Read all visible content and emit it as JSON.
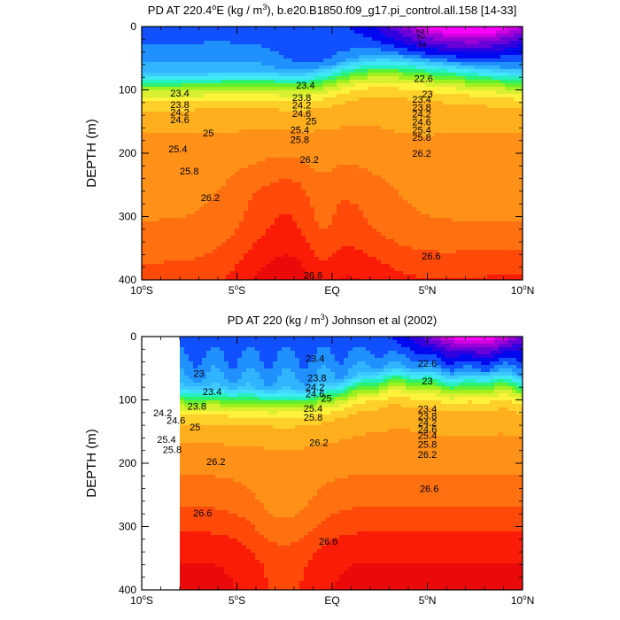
{
  "chart_data": [
    {
      "type": "heatmap",
      "subtype": "filled-contour",
      "title_parts": [
        "PD AT 220.4",
        "o",
        "E (kg / m",
        "3",
        "), b.e20.B1850.f09_g17.pi_control.all.158 [14-33]"
      ],
      "ylabel": "DEPTH (m)",
      "xlim": [
        -10,
        10
      ],
      "ylim": [
        400,
        0
      ],
      "x_ticks": [
        {
          "value": -10,
          "label": "10",
          "sup": "o",
          "suffix": "S"
        },
        {
          "value": -5,
          "label": "5",
          "sup": "o",
          "suffix": "S"
        },
        {
          "value": 0,
          "label": "EQ",
          "sup": "",
          "suffix": ""
        },
        {
          "value": 5,
          "label": "5",
          "sup": "o",
          "suffix": "N"
        },
        {
          "value": 10,
          "label": "10",
          "sup": "o",
          "suffix": "N"
        }
      ],
      "y_ticks": [
        {
          "value": 0,
          "label": "0"
        },
        {
          "value": 100,
          "label": "100"
        },
        {
          "value": 200,
          "label": "200"
        },
        {
          "value": 300,
          "label": "300"
        },
        {
          "value": 400,
          "label": "400"
        }
      ],
      "contour_levels": [
        21.6,
        21.8,
        22.0,
        22.2,
        22.4,
        22.6,
        22.8,
        23.0,
        23.2,
        23.4,
        23.6,
        23.8,
        24.0,
        24.2,
        24.4,
        24.6,
        24.8,
        25.0,
        25.2,
        25.4,
        25.6,
        25.8,
        26.0,
        26.2,
        26.4,
        26.6
      ],
      "colormap": [
        "#ff00ff",
        "#d100e0",
        "#9c00d6",
        "#6a00d8",
        "#3000e0",
        "#0008f0",
        "#1050ff",
        "#2090ff",
        "#30b4ff",
        "#3dc9ff",
        "#40dbff",
        "#3fe9f6",
        "#25f0c0",
        "#2cf070",
        "#5ff030",
        "#a0f020",
        "#d8f030",
        "#fff23a",
        "#ffd02a",
        "#ffaf1e",
        "#ff9018",
        "#ff7010",
        "#ff4a0a",
        "#fa1c06",
        "#eb0a0a",
        "#cc0000"
      ],
      "label_annotations": [
        {
          "x": 4.7,
          "y": 18,
          "text": "22.2",
          "rotate": 80
        },
        {
          "x": 4.8,
          "y": 82,
          "text": "22.6"
        },
        {
          "x": 5.0,
          "y": 106,
          "text": "23"
        },
        {
          "x": -8.0,
          "y": 105,
          "text": "23.4"
        },
        {
          "x": -1.4,
          "y": 92,
          "text": "23.4"
        },
        {
          "x": -8.0,
          "y": 123,
          "text": "23.8"
        },
        {
          "x": -1.6,
          "y": 112,
          "text": "23.8"
        },
        {
          "x": -8.0,
          "y": 135,
          "text": "24.2"
        },
        {
          "x": -1.6,
          "y": 124,
          "text": "24.2"
        },
        {
          "x": -8.0,
          "y": 147,
          "text": "24.6"
        },
        {
          "x": -1.6,
          "y": 137,
          "text": "24.6"
        },
        {
          "x": -1.1,
          "y": 149,
          "text": "25"
        },
        {
          "x": -6.5,
          "y": 168,
          "text": "25"
        },
        {
          "x": -1.7,
          "y": 163,
          "text": "25.4"
        },
        {
          "x": -8.1,
          "y": 193,
          "text": "25.4"
        },
        {
          "x": -1.7,
          "y": 178,
          "text": "25.8"
        },
        {
          "x": -7.5,
          "y": 228,
          "text": "25.8"
        },
        {
          "x": 4.7,
          "y": 175,
          "text": "25.8"
        },
        {
          "x": 4.7,
          "y": 163,
          "text": "25.4"
        },
        {
          "x": 4.7,
          "y": 150,
          "text": "24.6"
        },
        {
          "x": 4.7,
          "y": 138,
          "text": "24.2"
        },
        {
          "x": 4.7,
          "y": 127,
          "text": "23.8"
        },
        {
          "x": 4.7,
          "y": 115,
          "text": "23.4"
        },
        {
          "x": 4.7,
          "y": 200,
          "text": "26.2"
        },
        {
          "x": -1.2,
          "y": 210,
          "text": "26.2"
        },
        {
          "x": -6.4,
          "y": 270,
          "text": "26.2"
        },
        {
          "x": 5.2,
          "y": 362,
          "text": "26.6"
        },
        {
          "x": -1.0,
          "y": 392,
          "text": "26.6"
        }
      ]
    },
    {
      "type": "heatmap",
      "subtype": "filled-contour",
      "title_parts": [
        "PD AT 220 (kg / m",
        "3",
        ") Johnson et al (2002)"
      ],
      "ylabel": "DEPTH (m)",
      "xlim": [
        -10,
        10
      ],
      "ylim": [
        400,
        0
      ],
      "data_xrange": [
        -8,
        10
      ],
      "x_ticks": [
        {
          "value": -10,
          "label": "10",
          "sup": "o",
          "suffix": "S"
        },
        {
          "value": -5,
          "label": "5",
          "sup": "o",
          "suffix": "S"
        },
        {
          "value": 0,
          "label": "EQ",
          "sup": "",
          "suffix": ""
        },
        {
          "value": 5,
          "label": "5",
          "sup": "o",
          "suffix": "N"
        },
        {
          "value": 10,
          "label": "10",
          "sup": "o",
          "suffix": "N"
        }
      ],
      "y_ticks": [
        {
          "value": 0,
          "label": "0"
        },
        {
          "value": 100,
          "label": "100"
        },
        {
          "value": 200,
          "label": "200"
        },
        {
          "value": 300,
          "label": "300"
        },
        {
          "value": 400,
          "label": "400"
        }
      ],
      "label_annotations": [
        {
          "x": -7.0,
          "y": 58,
          "text": "23"
        },
        {
          "x": 5.0,
          "y": 42,
          "text": "22.6"
        },
        {
          "x": 5.0,
          "y": 70,
          "text": "23"
        },
        {
          "x": -6.3,
          "y": 87,
          "text": "23.4"
        },
        {
          "x": -0.9,
          "y": 34,
          "text": "23.4"
        },
        {
          "x": -0.8,
          "y": 65,
          "text": "23.8"
        },
        {
          "x": -7.1,
          "y": 110,
          "text": "23.8"
        },
        {
          "x": -8.9,
          "y": 120,
          "text": "24.2"
        },
        {
          "x": -0.9,
          "y": 80,
          "text": "24.2"
        },
        {
          "x": -8.2,
          "y": 132,
          "text": "24.6"
        },
        {
          "x": -0.9,
          "y": 90,
          "text": "24.6"
        },
        {
          "x": -7.2,
          "y": 143,
          "text": "25"
        },
        {
          "x": -0.3,
          "y": 97,
          "text": "25"
        },
        {
          "x": -1.0,
          "y": 113,
          "text": "25.4"
        },
        {
          "x": -8.7,
          "y": 162,
          "text": "25.4"
        },
        {
          "x": -1.0,
          "y": 127,
          "text": "25.8"
        },
        {
          "x": -8.4,
          "y": 178,
          "text": "25.8"
        },
        {
          "x": -6.1,
          "y": 197,
          "text": "26.2"
        },
        {
          "x": -0.7,
          "y": 167,
          "text": "26.2"
        },
        {
          "x": 5.0,
          "y": 114,
          "text": "23.4"
        },
        {
          "x": 5.0,
          "y": 125,
          "text": "23.8"
        },
        {
          "x": 5.0,
          "y": 136,
          "text": "24.2"
        },
        {
          "x": 5.0,
          "y": 146,
          "text": "24.6"
        },
        {
          "x": 5.0,
          "y": 156,
          "text": "25.4"
        },
        {
          "x": 5.0,
          "y": 170,
          "text": "25.8"
        },
        {
          "x": 5.0,
          "y": 186,
          "text": "26.2"
        },
        {
          "x": -6.8,
          "y": 278,
          "text": "26.6"
        },
        {
          "x": -0.2,
          "y": 323,
          "text": "26.6"
        },
        {
          "x": 5.1,
          "y": 240,
          "text": "26.6"
        }
      ]
    }
  ]
}
